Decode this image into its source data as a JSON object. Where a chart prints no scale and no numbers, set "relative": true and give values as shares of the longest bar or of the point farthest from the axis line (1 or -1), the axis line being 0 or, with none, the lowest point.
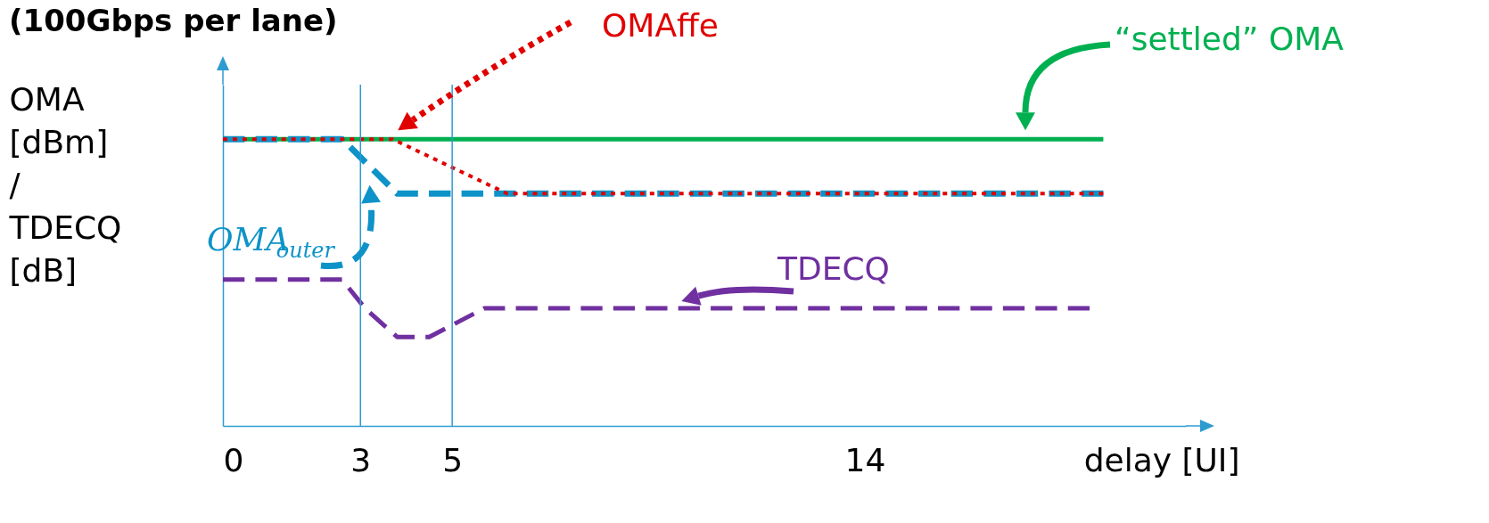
{
  "chart_data": {
    "type": "line",
    "title": "(100Gbps per lane)",
    "xlabel": "delay [UI]",
    "ylabel": "OMA [dBm] / TDECQ [dB]",
    "relative": true,
    "legend": false,
    "marker": "none",
    "grid": false,
    "xlim": [
      0,
      21
    ],
    "xticks": [
      0,
      3,
      5,
      14
    ],
    "ref_lines": [
      {
        "axis": "x",
        "value": 3,
        "color": "#2e9bd0"
      },
      {
        "axis": "x",
        "value": 5,
        "color": "#2e9bd0"
      }
    ],
    "series": [
      {
        "name": "“settled” OMA",
        "color": "#00b050",
        "line_style": "solid",
        "x": [
          0,
          19.2
        ],
        "values": [
          1,
          1
        ]
      },
      {
        "name": "OMA$_{outer}$",
        "color": "#0e93c8",
        "line_style": "dashed",
        "x": [
          0,
          2.6,
          3.8,
          19.2
        ],
        "values": [
          1,
          1,
          0.81,
          0.81
        ]
      },
      {
        "name": "OMAffe",
        "color": "#e00000",
        "line_style": "dotted",
        "x": [
          0,
          3.7,
          6.2,
          19.2
        ],
        "values": [
          1,
          1,
          0.81,
          0.81
        ]
      },
      {
        "name": "TDECQ",
        "color": "#7030a0",
        "line_style": "dashed",
        "x": [
          0,
          2.6,
          3.1,
          3.8,
          4.5,
          5.7,
          18.9
        ],
        "values": [
          0.51,
          0.51,
          0.41,
          0.31,
          0.31,
          0.41,
          0.41
        ]
      }
    ]
  }
}
